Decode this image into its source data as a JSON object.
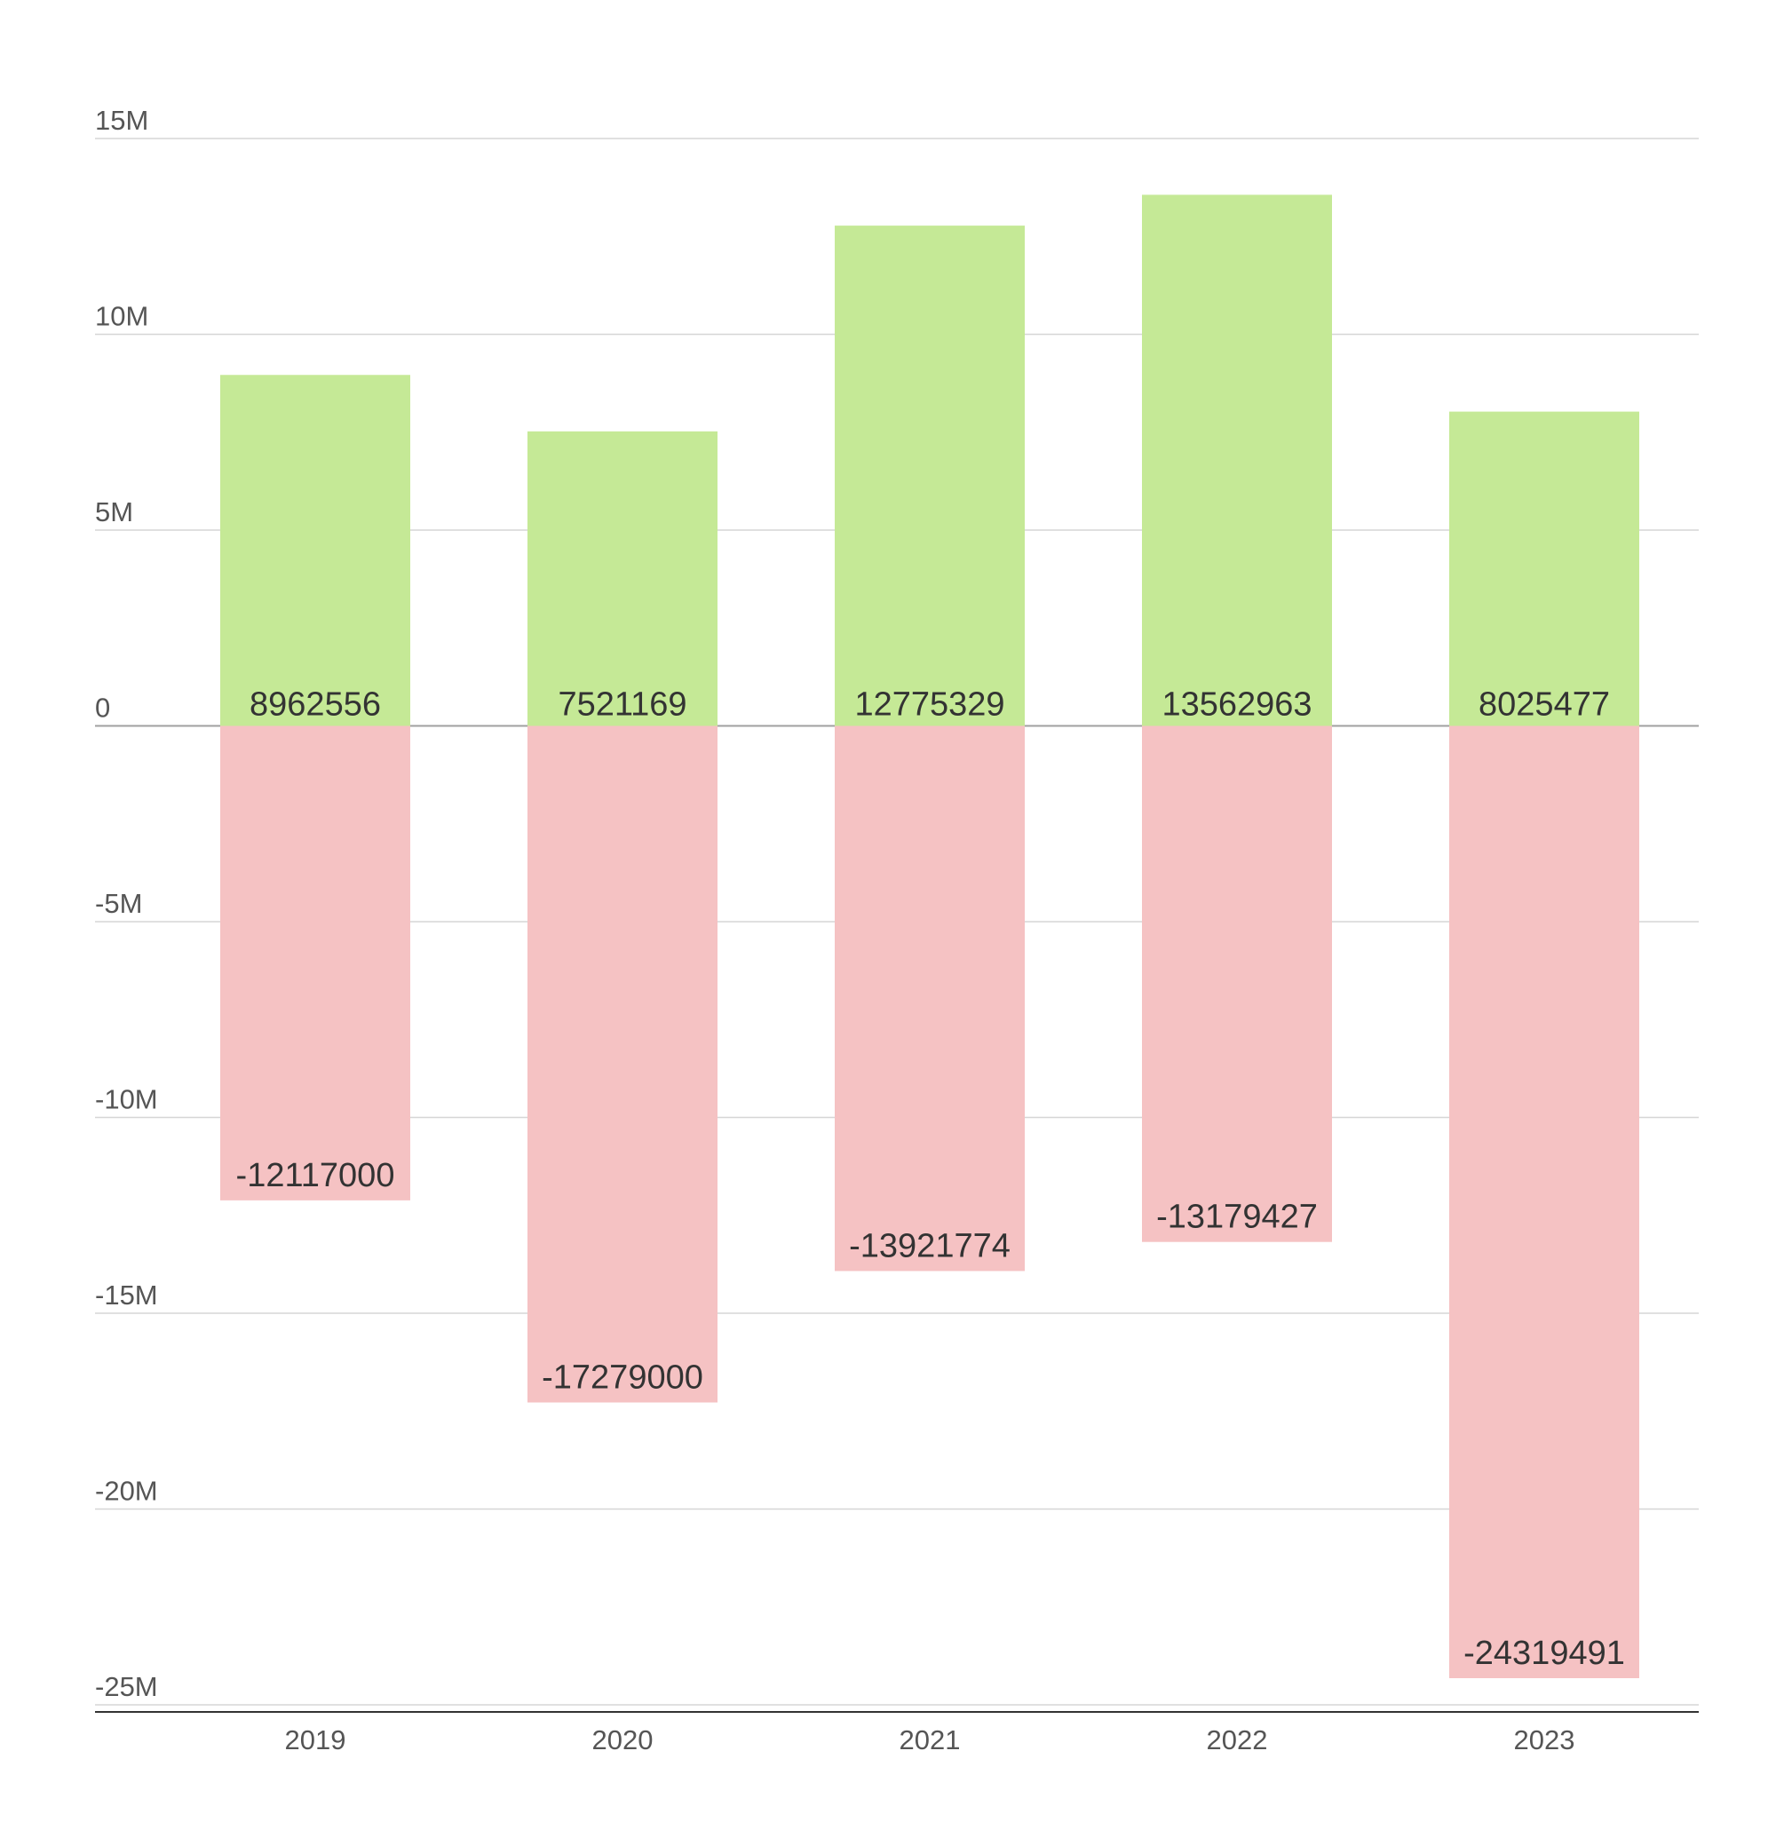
{
  "chart_data": {
    "type": "bar",
    "categories": [
      "2019",
      "2020",
      "2021",
      "2022",
      "2023"
    ],
    "series": [
      {
        "values": [
          8962556,
          7521169,
          12775329,
          13562963,
          8025477
        ],
        "color": "#c5e996"
      },
      {
        "values": [
          -12117000,
          -17279000,
          -13921774,
          -13179427,
          -24319491
        ],
        "color": "#f5c2c3"
      }
    ],
    "title": "",
    "xlabel": "",
    "ylabel": "",
    "ylim": [
      -25000000,
      15000000
    ],
    "y_ticks": [
      {
        "value": 15000000,
        "label": "15M"
      },
      {
        "value": 10000000,
        "label": "10M"
      },
      {
        "value": 5000000,
        "label": "5M"
      },
      {
        "value": 0,
        "label": "0"
      },
      {
        "value": -5000000,
        "label": "-5M"
      },
      {
        "value": -10000000,
        "label": "-10M"
      },
      {
        "value": -15000000,
        "label": "-15M"
      },
      {
        "value": -20000000,
        "label": "-20M"
      },
      {
        "value": -25000000,
        "label": "-25M"
      }
    ],
    "data_labels": {
      "positive": [
        "8962556",
        "7521169",
        "12775329",
        "13562963",
        "8025477"
      ],
      "negative": [
        "-12117000",
        "-17279000",
        "-13921774",
        "-13179427",
        "-24319491"
      ]
    },
    "grid": true,
    "legend": "none",
    "stacked": true
  }
}
